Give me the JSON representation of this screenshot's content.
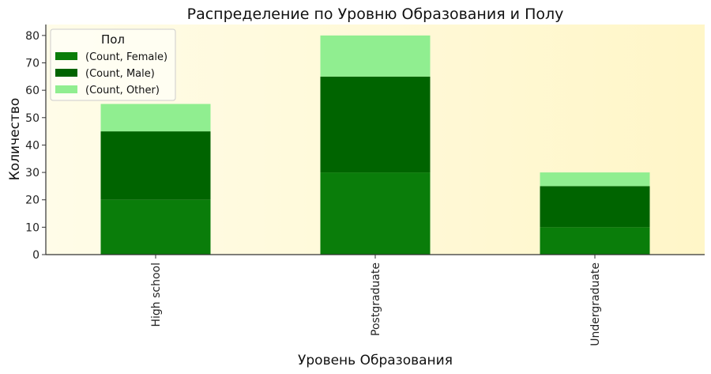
{
  "chart_data": {
    "type": "bar",
    "stacked": true,
    "title": "Распределение по Уровню Образования и Полу",
    "xlabel": "Уровень Образования",
    "ylabel": "Количество",
    "categories": [
      "High school",
      "Postgraduate",
      "Undergraduate"
    ],
    "series": [
      {
        "name": "(Count, Female)",
        "values": [
          20,
          30,
          10
        ],
        "color": "#0a7d0a"
      },
      {
        "name": "(Count, Male)",
        "values": [
          25,
          35,
          15
        ],
        "color": "#006400"
      },
      {
        "name": "(Count, Other)",
        "values": [
          10,
          15,
          5
        ],
        "color": "#90ee90"
      }
    ],
    "ylim": [
      0,
      84
    ],
    "yticks": [
      0,
      10,
      20,
      30,
      40,
      50,
      60,
      70,
      80
    ],
    "legend": {
      "title": "Пол",
      "position": "top-left"
    },
    "grid": false,
    "plot_background": "#fff8d0"
  }
}
